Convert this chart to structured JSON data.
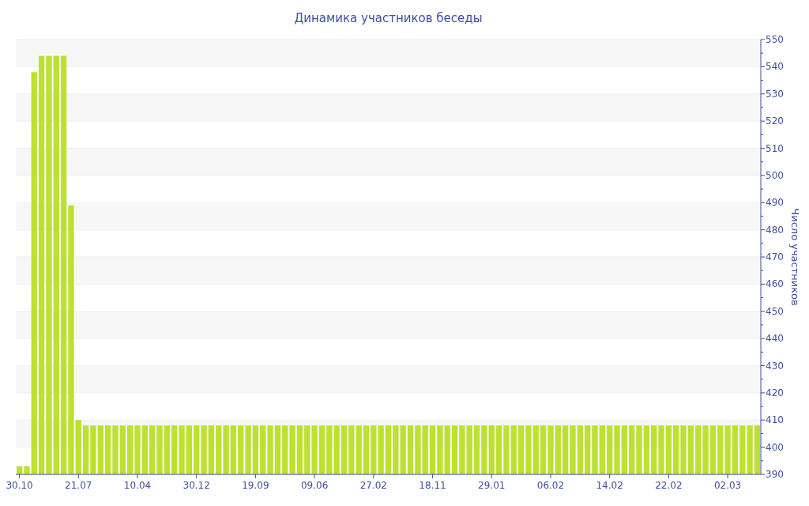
{
  "chart_data": {
    "type": "bar",
    "title": "Динамика участников беседы",
    "ylabel": "Число участников",
    "categories": [
      "30.10",
      null,
      null,
      null,
      null,
      null,
      null,
      null,
      "21.07",
      null,
      null,
      null,
      null,
      null,
      null,
      null,
      "10.04",
      null,
      null,
      null,
      null,
      null,
      null,
      null,
      "30.12",
      null,
      null,
      null,
      null,
      null,
      null,
      null,
      "19.09",
      null,
      null,
      null,
      null,
      null,
      null,
      null,
      "09.06",
      null,
      null,
      null,
      null,
      null,
      null,
      null,
      "27.02",
      null,
      null,
      null,
      null,
      null,
      null,
      null,
      "18.11",
      null,
      null,
      null,
      null,
      null,
      null,
      null,
      "29.01",
      null,
      null,
      null,
      null,
      null,
      null,
      null,
      "06.02",
      null,
      null,
      null,
      null,
      null,
      null,
      null,
      "14.02",
      null,
      null,
      null,
      null,
      null,
      null,
      null,
      "22.02",
      null,
      null,
      null,
      null,
      null,
      null,
      null,
      "02.03",
      null,
      null,
      null,
      null
    ],
    "values": [
      393,
      393,
      538,
      544,
      544,
      544,
      544,
      489,
      410,
      408,
      408,
      408,
      408,
      408,
      408,
      408,
      408,
      408,
      408,
      408,
      408,
      408,
      408,
      408,
      408,
      408,
      408,
      408,
      408,
      408,
      408,
      408,
      408,
      408,
      408,
      408,
      408,
      408,
      408,
      408,
      408,
      408,
      408,
      408,
      408,
      408,
      408,
      408,
      408,
      408,
      408,
      408,
      408,
      408,
      408,
      408,
      408,
      408,
      408,
      408,
      408,
      408,
      408,
      408,
      408,
      408,
      408,
      408,
      408,
      408,
      408,
      408,
      408,
      408,
      408,
      408,
      408,
      408,
      408,
      408,
      408,
      408,
      408,
      408,
      408,
      408,
      408,
      408,
      408,
      408,
      408,
      408,
      408,
      408,
      408,
      408,
      408,
      408,
      408,
      408,
      408
    ],
    "color": "#bde12f",
    "ylim": [
      390,
      550
    ],
    "yticks": [
      390,
      {
        "value": 395,
        "label": null
      },
      400,
      {
        "value": 405,
        "label": null
      },
      410,
      {
        "value": 415,
        "label": null
      },
      420,
      {
        "value": 425,
        "label": null
      },
      430,
      {
        "value": 435,
        "label": null
      },
      440,
      {
        "value": 445,
        "label": null
      },
      450,
      {
        "value": 455,
        "label": null
      },
      460,
      {
        "value": 465,
        "label": null
      },
      470,
      {
        "value": 475,
        "label": null
      },
      480,
      {
        "value": 485,
        "label": null
      },
      490,
      {
        "value": 495,
        "label": null
      },
      500,
      {
        "value": 505,
        "label": null
      },
      510,
      {
        "value": 515,
        "label": null
      },
      520,
      {
        "value": 525,
        "label": null
      },
      530,
      {
        "value": 535,
        "label": null
      },
      540,
      {
        "value": 545,
        "label": null
      },
      550
    ],
    "grid": "y"
  }
}
